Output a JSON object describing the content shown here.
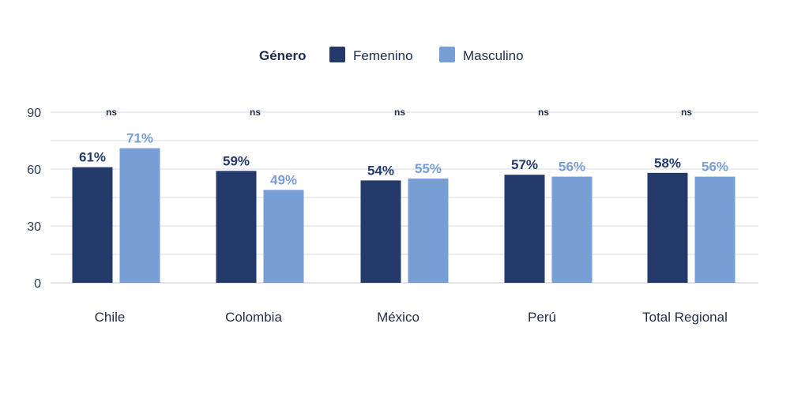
{
  "chart_data": {
    "type": "bar",
    "legend": {
      "title": "Género",
      "placement": "top-center"
    },
    "categories": [
      "Chile",
      "Colombia",
      "México",
      "Perú",
      "Total Regional"
    ],
    "series": [
      {
        "name": "Femenino",
        "color": "#233a6b",
        "values": [
          61,
          59,
          54,
          57,
          58
        ],
        "labels": [
          "61%",
          "59%",
          "54%",
          "57%",
          "58%"
        ]
      },
      {
        "name": "Masculino",
        "color": "#779fd6",
        "values": [
          71,
          49,
          55,
          56,
          56
        ],
        "labels": [
          "71%",
          "49%",
          "55%",
          "56%",
          "56%"
        ]
      }
    ],
    "significance": [
      "ns",
      "ns",
      "ns",
      "ns",
      "ns"
    ],
    "ylim": [
      0,
      90
    ],
    "yticks": [
      0,
      30,
      60,
      90
    ],
    "grid": true,
    "title": "",
    "xlabel": "",
    "ylabel": ""
  }
}
